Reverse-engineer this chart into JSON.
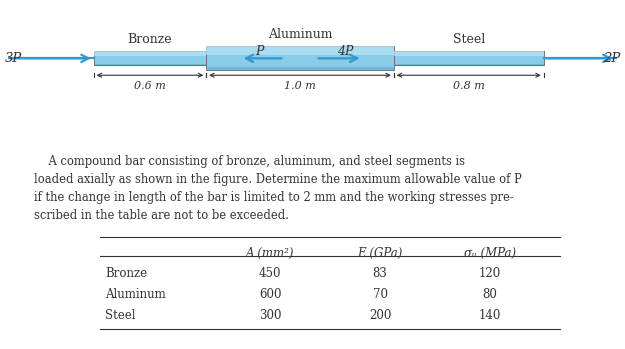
{
  "bg_color": "#ffffff",
  "bar_color_main": "#88cce8",
  "bar_color_light": "#b8e4f4",
  "bar_color_dark": "#4499cc",
  "bar_color_shadow": "#55aacc",
  "bronze_label": "Bronze",
  "aluminum_label": "Aluminum",
  "steel_label": "Steel",
  "force_3P": "3P",
  "force_2P": "2P",
  "force_P": "P",
  "force_4P": "4P",
  "dim_bronze": "0.6 m",
  "dim_alum": "1.0 m",
  "dim_steel": "0.8 m",
  "text_line1": "    A compound bar consisting of bronze, aluminum, and steel segments is",
  "text_line2": "loaded axially as shown in the figure. Determine the maximum allowable value of P",
  "text_line3": "if the change in length of the bar is limited to 2 mm and the working stresses pre-",
  "text_line4": "scribed in the table are not to be exceeded.",
  "table_headers": [
    "A (mm²)",
    "E (GPa)",
    "σᵤ (MPa)"
  ],
  "table_materials": [
    "Bronze",
    "Aluminum",
    "Steel"
  ],
  "table_data": [
    [
      450,
      83,
      120
    ],
    [
      600,
      70,
      80
    ],
    [
      300,
      200,
      140
    ]
  ],
  "arrow_color": "#3399cc",
  "text_color": "#333333",
  "fig_width": 6.25,
  "fig_height": 3.49,
  "dpi": 100
}
